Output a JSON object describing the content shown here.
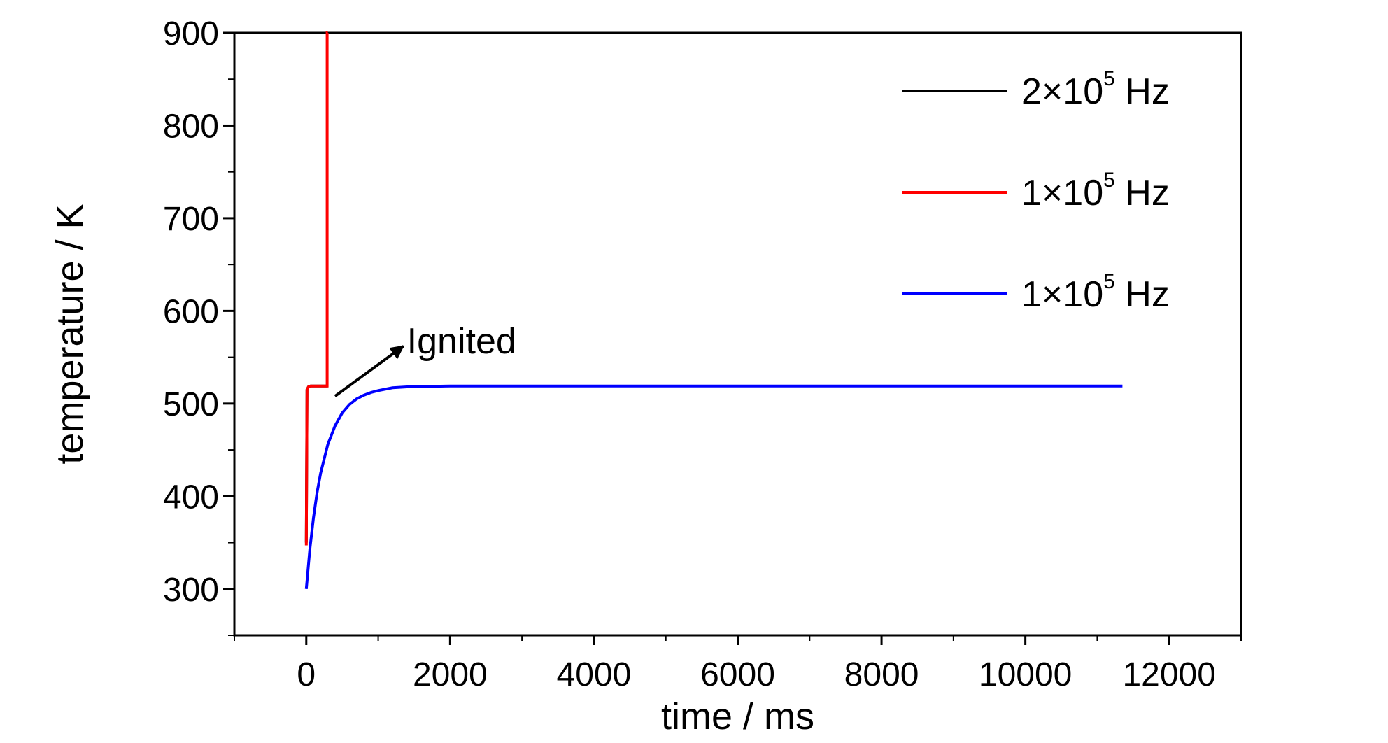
{
  "chart_data": {
    "type": "line",
    "xlabel": "time / ms",
    "ylabel": "temperature / K",
    "xlim": [
      -1000,
      13000
    ],
    "ylim": [
      250,
      900
    ],
    "xticks": [
      0,
      2000,
      4000,
      6000,
      8000,
      10000,
      12000
    ],
    "yticks": [
      300,
      400,
      500,
      600,
      700,
      800,
      900
    ],
    "grid": false,
    "legend_position": "top-right",
    "series": [
      {
        "name": "2×10^5 Hz",
        "legend": {
          "base": "2×10",
          "exp": "5",
          "unit": " Hz"
        },
        "color": "#000000",
        "x": [
          0,
          10,
          30,
          60,
          100,
          150,
          200,
          250,
          300
        ],
        "y": [
          350,
          515,
          518,
          519,
          519,
          519,
          519,
          519,
          519
        ]
      },
      {
        "name": "1×10^5 Hz",
        "legend": {
          "base": "1×10",
          "exp": "5",
          "unit": " Hz"
        },
        "color": "#ff0000",
        "x": [
          0,
          10,
          30,
          60,
          100,
          150,
          200,
          250,
          290,
          290,
          300
        ],
        "y": [
          347,
          515,
          518,
          519,
          519,
          519,
          519,
          519,
          519,
          900,
          900
        ]
      },
      {
        "name": "1×10^5 Hz",
        "legend": {
          "base": "1×10",
          "exp": "5",
          "unit": " Hz"
        },
        "color": "#0000ff",
        "x": [
          0,
          50,
          100,
          150,
          200,
          300,
          400,
          500,
          600,
          700,
          800,
          900,
          1000,
          1200,
          1400,
          2000,
          4000,
          6000,
          8000,
          10000,
          11350
        ],
        "y": [
          300,
          343,
          377,
          404,
          425,
          456,
          476,
          490,
          499,
          505,
          509,
          512,
          514,
          517,
          518,
          519,
          519,
          519,
          519,
          519,
          519
        ]
      }
    ],
    "annotations": [
      {
        "text": "Ignited",
        "arrow_from": [
          400,
          508
        ],
        "arrow_to": [
          1350,
          562
        ],
        "text_at": [
          1400,
          568
        ]
      }
    ]
  }
}
